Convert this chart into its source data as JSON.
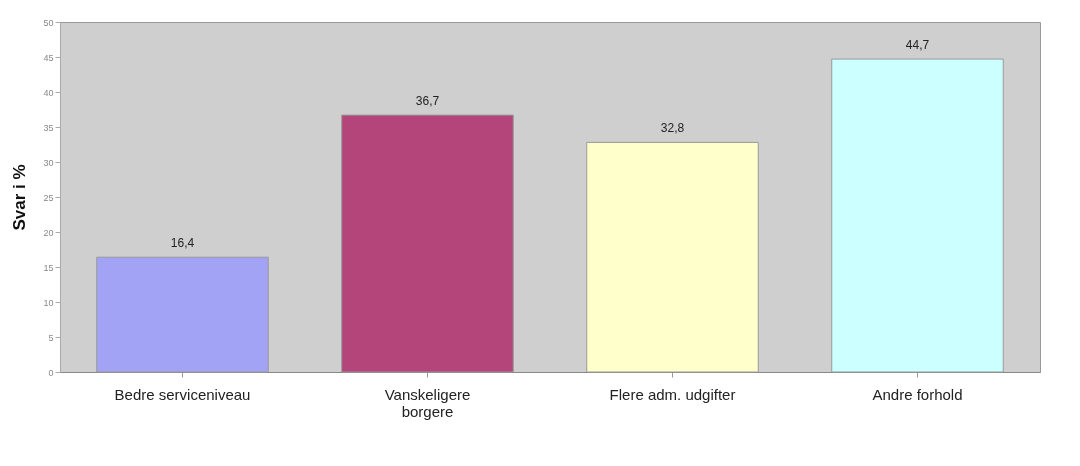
{
  "chart_data": {
    "type": "bar",
    "ylabel": "Svar i %",
    "categories": [
      "Bedre serviceniveau",
      "Vanskeligere borgere",
      "Flere adm. udgifter",
      "Andre forhold"
    ],
    "values": [
      16.4,
      36.7,
      32.8,
      44.7
    ],
    "value_labels": [
      "16,4",
      "36,7",
      "32,8",
      "44,7"
    ],
    "colors": [
      "#a3a3f5",
      "#b3457a",
      "#ffffcc",
      "#ccffff"
    ],
    "ylim": [
      0,
      50
    ],
    "yticks": [
      0,
      5,
      10,
      15,
      20,
      25,
      30,
      35,
      40,
      45,
      50
    ],
    "grid": false,
    "legend": false
  }
}
